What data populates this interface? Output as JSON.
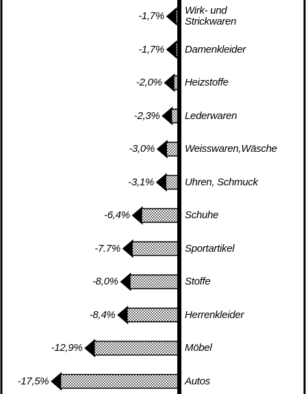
{
  "chart_data": {
    "type": "bar",
    "orientation": "horizontal",
    "categories": [
      "Wirk- und\nStrickwaren",
      "Damenkleider",
      "Heizstoffe",
      "Lederwaren",
      "Weisswaren,Wäsche",
      "Uhren, Schmuck",
      "Schuhe",
      "Sportartikel",
      "Stoffe",
      "Herrenkleider",
      "Möbel",
      "Autos"
    ],
    "values": [
      -1.7,
      -1.7,
      -2.0,
      -2.3,
      -3.0,
      -3.1,
      -6.4,
      -7.7,
      -8.0,
      -8.4,
      -12.9,
      -17.5
    ],
    "value_labels": [
      "-1,7%",
      "-1,7%",
      "-2,0%",
      "-2,3%",
      "-3,0%",
      "-3,1%",
      "-6,4%",
      "-7.7%",
      "-8,0%",
      "-8,4%",
      "-12,9%",
      "-17,5%"
    ],
    "xlim": [
      -18,
      0
    ],
    "color": "#000000"
  }
}
